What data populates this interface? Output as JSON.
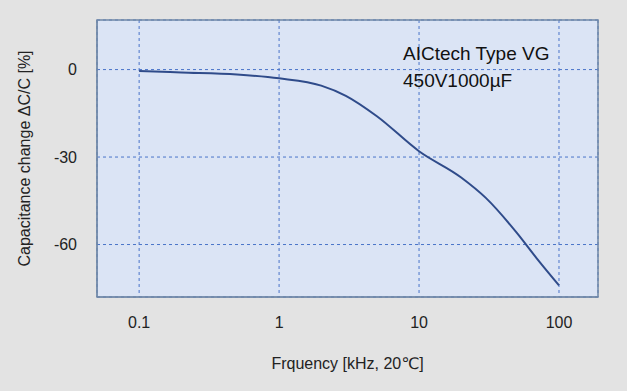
{
  "chart_data": {
    "type": "line",
    "annotations": [
      "AICtech Type VG",
      "450V1000µF"
    ],
    "x_label": "Frquency [kHz, 20℃]",
    "y_label": "Capacitance change ΔC/C [%]",
    "x": [
      0.1,
      0.2,
      0.5,
      1,
      2,
      3,
      5,
      10,
      20,
      30,
      50,
      70,
      100
    ],
    "values": [
      -0.5,
      -1,
      -1.7,
      -3,
      -5.5,
      -9,
      -16,
      -28,
      -37,
      -44,
      -56,
      -65,
      -74
    ],
    "color": "#2f4b8a",
    "xlim": [
      0.05,
      190
    ],
    "xticks": [
      0.1,
      1,
      10,
      100
    ],
    "ylim": [
      -78,
      17
    ],
    "yticks": [
      0,
      -30,
      -60
    ],
    "log": "x",
    "grid": true
  }
}
